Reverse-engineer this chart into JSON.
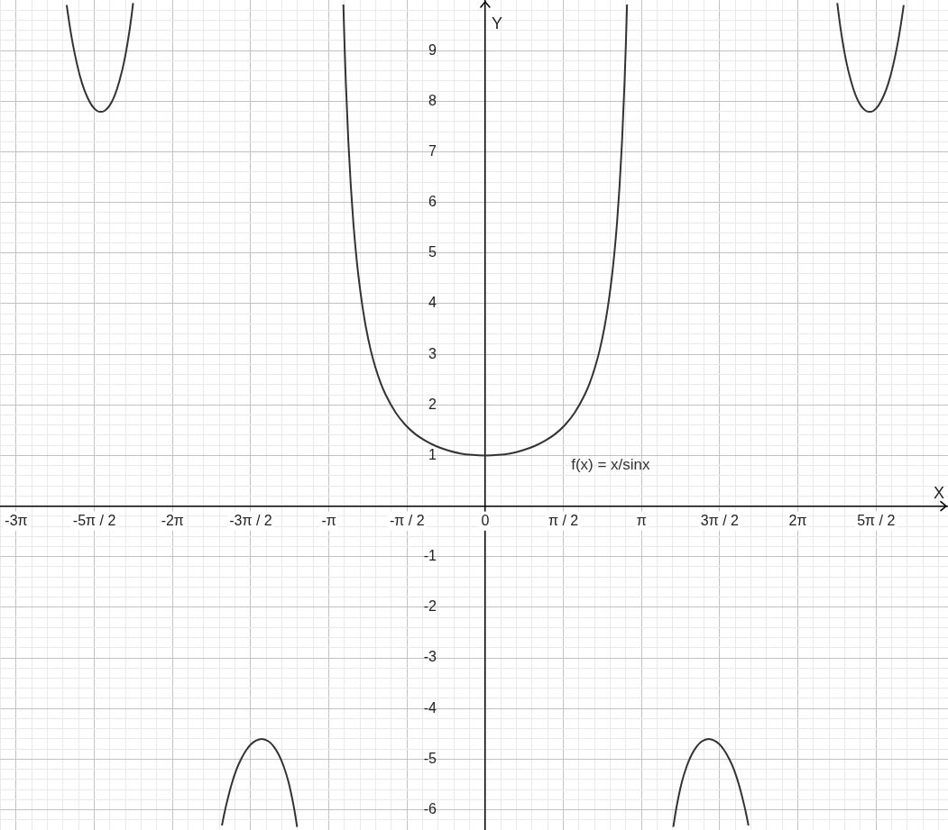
{
  "chart_data": {
    "type": "line",
    "xlabel": "X",
    "ylabel": "Y",
    "xlim": [
      -9.75,
      9.3
    ],
    "ylim": [
      -6.4,
      10
    ],
    "xticks": [
      {
        "value": -9.7389,
        "label": null
      },
      {
        "value": -9.4248,
        "label": "-3π"
      },
      {
        "value": -9.1106,
        "label": null
      },
      {
        "value": -8.7965,
        "label": null
      },
      {
        "value": -8.4823,
        "label": null
      },
      {
        "value": -8.1681,
        "label": null
      },
      {
        "value": -7.854,
        "label": "-5π / 2"
      },
      {
        "value": -7.5398,
        "label": null
      },
      {
        "value": -7.2257,
        "label": null
      },
      {
        "value": -6.9115,
        "label": null
      },
      {
        "value": -6.5973,
        "label": null
      },
      {
        "value": -6.2832,
        "label": "-2π"
      },
      {
        "value": -5.969,
        "label": null
      },
      {
        "value": -5.6549,
        "label": null
      },
      {
        "value": -5.3407,
        "label": null
      },
      {
        "value": -5.0265,
        "label": null
      },
      {
        "value": -4.7124,
        "label": "-3π / 2"
      },
      {
        "value": -4.3982,
        "label": null
      },
      {
        "value": -4.0841,
        "label": null
      },
      {
        "value": -3.7699,
        "label": null
      },
      {
        "value": -3.4558,
        "label": null
      },
      {
        "value": -3.1416,
        "label": "-π"
      },
      {
        "value": -2.8274,
        "label": null
      },
      {
        "value": -2.5133,
        "label": null
      },
      {
        "value": -2.1991,
        "label": null
      },
      {
        "value": -1.885,
        "label": null
      },
      {
        "value": -1.5708,
        "label": "-π / 2"
      },
      {
        "value": -1.2566,
        "label": null
      },
      {
        "value": -0.9425,
        "label": null
      },
      {
        "value": -0.6283,
        "label": null
      },
      {
        "value": -0.3142,
        "label": null
      },
      0,
      {
        "value": 0.3142,
        "label": null
      },
      {
        "value": 0.6283,
        "label": null
      },
      {
        "value": 0.9425,
        "label": null
      },
      {
        "value": 1.2566,
        "label": null
      },
      {
        "value": 1.5708,
        "label": "π / 2"
      },
      {
        "value": 1.885,
        "label": null
      },
      {
        "value": 2.1991,
        "label": null
      },
      {
        "value": 2.5133,
        "label": null
      },
      {
        "value": 2.8274,
        "label": null
      },
      {
        "value": 3.1416,
        "label": "π"
      },
      {
        "value": 3.4558,
        "label": null
      },
      {
        "value": 3.7699,
        "label": null
      },
      {
        "value": 4.0841,
        "label": null
      },
      {
        "value": 4.3982,
        "label": null
      },
      {
        "value": 4.7124,
        "label": "3π / 2"
      },
      {
        "value": 5.0265,
        "label": null
      },
      {
        "value": 5.3407,
        "label": null
      },
      {
        "value": 5.6549,
        "label": null
      },
      {
        "value": 5.969,
        "label": null
      },
      {
        "value": 6.2832,
        "label": "2π"
      },
      {
        "value": 6.5973,
        "label": null
      },
      {
        "value": 6.9115,
        "label": null
      },
      {
        "value": 7.2257,
        "label": null
      },
      {
        "value": 7.5398,
        "label": null
      },
      {
        "value": 7.854,
        "label": "5π / 2"
      },
      {
        "value": 8.1681,
        "label": null
      },
      {
        "value": 8.4823,
        "label": null
      },
      {
        "value": 8.7965,
        "label": null
      },
      {
        "value": 9.1106,
        "label": null
      }
    ],
    "yticks": [
      {
        "value": -6.2,
        "label": null
      },
      -6,
      {
        "value": -5.8,
        "label": null
      },
      {
        "value": -5.6,
        "label": null
      },
      {
        "value": -5.4,
        "label": null
      },
      {
        "value": -5.2,
        "label": null
      },
      -5,
      {
        "value": -4.8,
        "label": null
      },
      {
        "value": -4.6,
        "label": null
      },
      {
        "value": -4.4,
        "label": null
      },
      {
        "value": -4.2,
        "label": null
      },
      -4,
      {
        "value": -3.8,
        "label": null
      },
      {
        "value": -3.6,
        "label": null
      },
      {
        "value": -3.4,
        "label": null
      },
      {
        "value": -3.2,
        "label": null
      },
      -3,
      {
        "value": -2.8,
        "label": null
      },
      {
        "value": -2.6,
        "label": null
      },
      {
        "value": -2.4,
        "label": null
      },
      {
        "value": -2.2,
        "label": null
      },
      -2,
      {
        "value": -1.8,
        "label": null
      },
      {
        "value": -1.6,
        "label": null
      },
      {
        "value": -1.4,
        "label": null
      },
      {
        "value": -1.2,
        "label": null
      },
      -1,
      {
        "value": -0.8,
        "label": null
      },
      {
        "value": -0.6,
        "label": null
      },
      {
        "value": -0.4,
        "label": null
      },
      {
        "value": -0.2,
        "label": null
      },
      {
        "value": 0,
        "label": null
      },
      {
        "value": 0.2,
        "label": null
      },
      {
        "value": 0.4,
        "label": null
      },
      {
        "value": 0.6,
        "label": null
      },
      {
        "value": 0.8,
        "label": null
      },
      1,
      {
        "value": 1.2,
        "label": null
      },
      {
        "value": 1.4,
        "label": null
      },
      {
        "value": 1.6,
        "label": null
      },
      {
        "value": 1.8,
        "label": null
      },
      2,
      {
        "value": 2.2,
        "label": null
      },
      {
        "value": 2.4,
        "label": null
      },
      {
        "value": 2.6,
        "label": null
      },
      {
        "value": 2.8,
        "label": null
      },
      3,
      {
        "value": 3.2,
        "label": null
      },
      {
        "value": 3.4,
        "label": null
      },
      {
        "value": 3.6,
        "label": null
      },
      {
        "value": 3.8,
        "label": null
      },
      4,
      {
        "value": 4.2,
        "label": null
      },
      {
        "value": 4.4,
        "label": null
      },
      {
        "value": 4.6,
        "label": null
      },
      {
        "value": 4.8,
        "label": null
      },
      5,
      {
        "value": 5.2,
        "label": null
      },
      {
        "value": 5.4,
        "label": null
      },
      {
        "value": 5.6,
        "label": null
      },
      {
        "value": 5.8,
        "label": null
      },
      6,
      {
        "value": 6.2,
        "label": null
      },
      {
        "value": 6.4,
        "label": null
      },
      {
        "value": 6.6,
        "label": null
      },
      {
        "value": 6.8,
        "label": null
      },
      7,
      {
        "value": 7.2,
        "label": null
      },
      {
        "value": 7.4,
        "label": null
      },
      {
        "value": 7.6,
        "label": null
      },
      {
        "value": 7.8,
        "label": null
      },
      8,
      {
        "value": 8.2,
        "label": null
      },
      {
        "value": 8.4,
        "label": null
      },
      {
        "value": 8.6,
        "label": null
      },
      {
        "value": 8.8,
        "label": null
      },
      9,
      {
        "value": 9.2,
        "label": null
      },
      {
        "value": 9.4,
        "label": null
      },
      {
        "value": 9.6,
        "label": null
      },
      {
        "value": 9.8,
        "label": null
      }
    ],
    "grid": true,
    "marker": "none",
    "color": "#333333",
    "x": [
      -8.41,
      -8.36,
      -8.3,
      -8.2,
      -8.1,
      -8.0,
      -7.9,
      -7.8,
      -7.73,
      -7.65,
      -7.55,
      -7.45,
      -7.35,
      -7.25,
      -7.15,
      -7.1,
      -7.075,
      -6.2832,
      -5.29,
      -5.25,
      -5.2,
      -5.1,
      -5.0,
      -4.9,
      -4.8,
      -4.7,
      -4.6,
      -4.49,
      -4.35,
      -4.25,
      -4.15,
      -4.05,
      -3.95,
      -3.85,
      -3.8,
      -3.78,
      -3.1416,
      -2.85,
      -2.825,
      -2.8,
      -2.75,
      -2.7,
      -2.65,
      -2.6,
      -2.55,
      -2.5,
      -2.45,
      -2.4,
      -2.3,
      -2.2,
      -2.1,
      -2.0,
      -1.8,
      -1.6,
      -1.4,
      -1.2,
      -1.0,
      -0.75,
      -0.5,
      -0.25,
      0,
      0.25,
      0.5,
      0.75,
      1.0,
      1.2,
      1.4,
      1.6,
      1.8,
      2.0,
      2.1,
      2.2,
      2.3,
      2.4,
      2.45,
      2.5,
      2.55,
      2.6,
      2.65,
      2.7,
      2.75,
      2.8,
      2.825,
      2.85,
      3.1416,
      3.78,
      3.8,
      3.85,
      3.95,
      4.05,
      4.15,
      4.25,
      4.35,
      4.49,
      4.6,
      4.7,
      4.8,
      4.9,
      5.0,
      5.1,
      5.2,
      5.25,
      5.29,
      6.2832,
      7.075,
      7.1,
      7.15,
      7.25,
      7.35,
      7.45,
      7.55,
      7.65,
      7.73,
      7.8,
      7.9,
      8.0,
      8.1,
      8.2,
      8.3,
      8.36,
      8.41
    ],
    "values": [
      9.9,
      9.56,
      9.2,
      8.72,
      8.35,
      8.09,
      7.91,
      7.81,
      7.79,
      7.81,
      7.91,
      8.1,
      8.4,
      8.81,
      9.38,
      9.74,
      9.94,
      null,
      -6.31,
      -6.11,
      -5.89,
      -5.51,
      -5.21,
      -4.99,
      -4.82,
      -4.7,
      -4.63,
      -4.6,
      -4.65,
      -4.75,
      -4.91,
      -5.14,
      -5.46,
      -5.92,
      -6.21,
      -6.34,
      null,
      9.91,
      9.07,
      8.36,
      7.21,
      6.32,
      5.61,
      5.04,
      4.57,
      4.18,
      3.84,
      3.55,
      3.08,
      2.72,
      2.43,
      2.2,
      1.85,
      1.6,
      1.42,
      1.29,
      1.19,
      1.1,
      1.04,
      1.01,
      1.0,
      1.01,
      1.04,
      1.1,
      1.19,
      1.29,
      1.42,
      1.6,
      1.85,
      2.2,
      2.43,
      2.72,
      3.08,
      3.55,
      3.84,
      4.18,
      4.57,
      5.04,
      5.61,
      6.32,
      7.21,
      8.36,
      9.07,
      9.91,
      null,
      -6.34,
      -6.21,
      -5.92,
      -5.46,
      -5.14,
      -4.91,
      -4.75,
      -4.65,
      -4.6,
      -4.63,
      -4.7,
      -4.82,
      -4.99,
      -5.21,
      -5.51,
      -5.89,
      -6.11,
      -6.31,
      null,
      9.94,
      9.74,
      9.38,
      8.81,
      8.4,
      8.1,
      7.91,
      7.81,
      7.79,
      7.81,
      7.91,
      8.09,
      8.35,
      8.72,
      9.2,
      9.56,
      9.9
    ],
    "annotations": [
      "f(x) = x/sinx"
    ]
  }
}
